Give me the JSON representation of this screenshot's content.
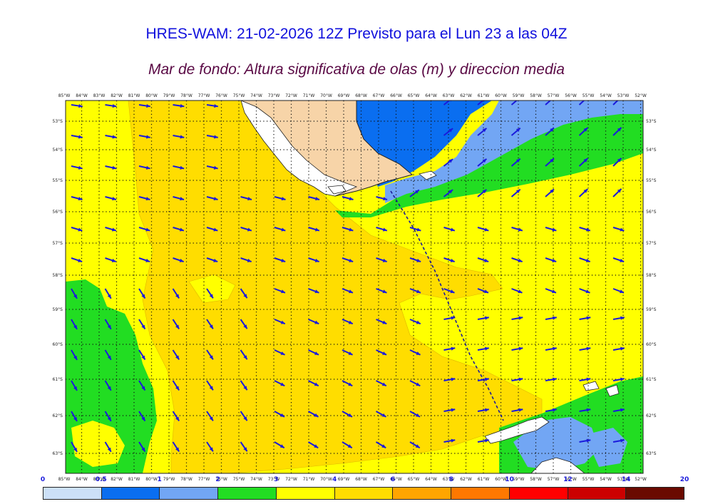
{
  "title": "HRES-WAM: 21-02-2026 12Z Previsto para el Lun 23 a las 04Z",
  "subtitle": "Mar de fondo: Altura significativa de olas (m) y direccion media",
  "map": {
    "lon_labels": [
      "85°W",
      "84°W",
      "83°W",
      "82°W",
      "81°W",
      "80°W",
      "79°W",
      "78°W",
      "77°W",
      "76°W",
      "75°W",
      "74°W",
      "73°W",
      "72°W",
      "71°W",
      "70°W",
      "69°W",
      "68°W",
      "67°W",
      "66°W",
      "65°W",
      "64°W",
      "63°W",
      "62°W",
      "61°W",
      "60°W",
      "59°W",
      "58°W",
      "57°W",
      "56°W",
      "55°W",
      "54°W",
      "53°W",
      "52°W"
    ],
    "lat_labels": [
      "53°S",
      "54°S",
      "55°S",
      "56°S",
      "57°S",
      "58°S",
      "59°S",
      "60°S",
      "61°S",
      "62°S",
      "63°S"
    ],
    "colors": {
      "land": "#f7d4a8",
      "coast": "#222222",
      "arrow": "#1a1adc",
      "grid": "#111111",
      "track": "#1a1a9a"
    }
  },
  "colorbar": {
    "labels": [
      "0",
      "0.5",
      "1",
      "2",
      "3",
      "4",
      "6",
      "8",
      "10",
      "12",
      "14",
      "20"
    ],
    "colors": [
      "#cce0f8",
      "#0a6ef0",
      "#72a6f4",
      "#22dd22",
      "#ffff00",
      "#ffdd00",
      "#ffa500",
      "#ff7800",
      "#ff0000",
      "#cc0000",
      "#6a0a00",
      "#333333"
    ]
  }
}
